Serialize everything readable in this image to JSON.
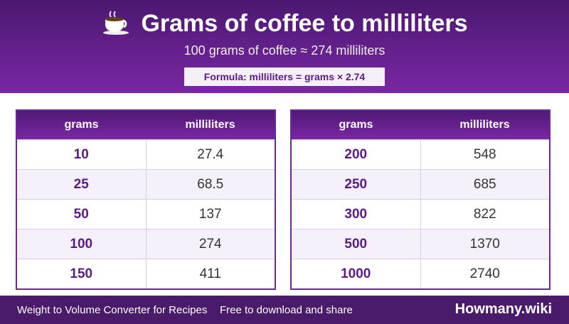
{
  "header": {
    "title": "Grams of coffee to milliliters",
    "subtitle": "100 grams of coffee ≈ 274 milliliters",
    "formula": "Formula: milliliters = grams × 2.74"
  },
  "tables": [
    {
      "columns": [
        "grams",
        "milliliters"
      ],
      "rows": [
        [
          10,
          27.4
        ],
        [
          25,
          68.5
        ],
        [
          50,
          137
        ],
        [
          100,
          274
        ],
        [
          150,
          411
        ]
      ]
    },
    {
      "columns": [
        "grams",
        "milliliters"
      ],
      "rows": [
        [
          200,
          548
        ],
        [
          250,
          685
        ],
        [
          300,
          822
        ],
        [
          500,
          1370
        ],
        [
          1000,
          2740
        ]
      ]
    }
  ],
  "footer": {
    "left": "Weight to Volume Converter for Recipes",
    "middle": "Free to download and share",
    "brand": "Howmany.wiki"
  }
}
